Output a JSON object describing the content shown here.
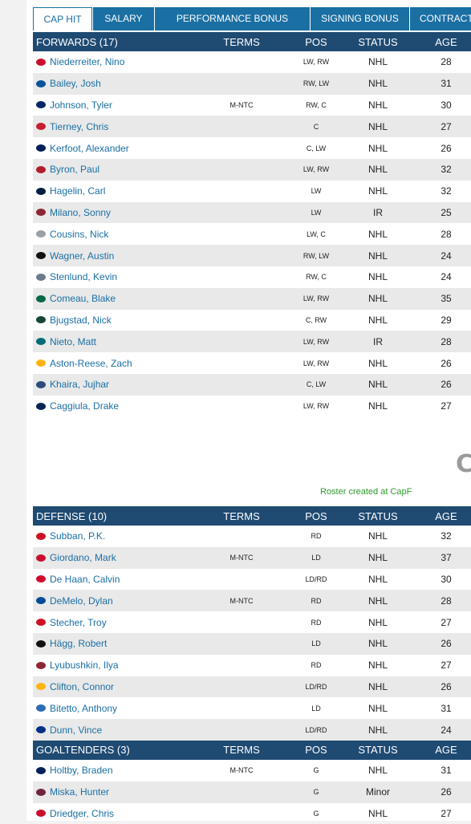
{
  "tabs": [
    {
      "label": "CAP HIT",
      "active": true
    },
    {
      "label": "SALARY",
      "active": false
    },
    {
      "label": "PERFORMANCE BONUS",
      "active": false
    },
    {
      "label": "SIGNING BONUS",
      "active": false
    },
    {
      "label": "CONTRACT CLA",
      "active": false
    }
  ],
  "columns": {
    "terms": "TERMS",
    "pos": "POS",
    "status": "STATUS",
    "age": "AGE"
  },
  "forwards": {
    "title": "FORWARDS (17)",
    "rows": [
      {
        "name": "Niederreiter, Nino",
        "terms": "",
        "pos": "LW, RW",
        "status": "NHL",
        "age": "28",
        "logo_color": "#c8102e"
      },
      {
        "name": "Bailey, Josh",
        "terms": "",
        "pos": "RW, LW",
        "status": "NHL",
        "age": "31",
        "logo_color": "#00539b"
      },
      {
        "name": "Johnson, Tyler",
        "terms": "M-NTC",
        "pos": "RW, C",
        "status": "NHL",
        "age": "30",
        "logo_color": "#002868"
      },
      {
        "name": "Tierney, Chris",
        "terms": "",
        "pos": "C",
        "status": "NHL",
        "age": "27",
        "logo_color": "#c52032"
      },
      {
        "name": "Kerfoot, Alexander",
        "terms": "",
        "pos": "C, LW",
        "status": "NHL",
        "age": "26",
        "logo_color": "#00205b"
      },
      {
        "name": "Byron, Paul",
        "terms": "",
        "pos": "LW, RW",
        "status": "NHL",
        "age": "32",
        "logo_color": "#af1e2d"
      },
      {
        "name": "Hagelin, Carl",
        "terms": "",
        "pos": "LW",
        "status": "NHL",
        "age": "32",
        "logo_color": "#041e42"
      },
      {
        "name": "Milano, Sonny",
        "terms": "",
        "pos": "LW",
        "status": "IR",
        "age": "25",
        "logo_color": "#8c2633"
      },
      {
        "name": "Cousins, Nick",
        "terms": "",
        "pos": "LW, C",
        "status": "NHL",
        "age": "28",
        "logo_color": "#9aa0a6"
      },
      {
        "name": "Wagner, Austin",
        "terms": "",
        "pos": "RW, LW",
        "status": "NHL",
        "age": "24",
        "logo_color": "#111111"
      },
      {
        "name": "Stenlund, Kevin",
        "terms": "",
        "pos": "RW, C",
        "status": "NHL",
        "age": "24",
        "logo_color": "#6c7b8b"
      },
      {
        "name": "Comeau, Blake",
        "terms": "",
        "pos": "LW, RW",
        "status": "NHL",
        "age": "35",
        "logo_color": "#006847"
      },
      {
        "name": "Bjugstad, Nick",
        "terms": "",
        "pos": "C, RW",
        "status": "NHL",
        "age": "29",
        "logo_color": "#154734"
      },
      {
        "name": "Nieto, Matt",
        "terms": "",
        "pos": "LW, RW",
        "status": "IR",
        "age": "28",
        "logo_color": "#006d75"
      },
      {
        "name": "Aston-Reese, Zach",
        "terms": "",
        "pos": "LW, RW",
        "status": "NHL",
        "age": "26",
        "logo_color": "#fcb514"
      },
      {
        "name": "Khaira, Jujhar",
        "terms": "",
        "pos": "C, LW",
        "status": "NHL",
        "age": "26",
        "logo_color": "#2e4d7a"
      },
      {
        "name": "Caggiula, Drake",
        "terms": "",
        "pos": "LW, RW",
        "status": "NHL",
        "age": "27",
        "logo_color": "#002654"
      }
    ]
  },
  "separator_logo": "C",
  "roster_note": "Roster created at CapF",
  "defense": {
    "title": "DEFENSE (10)",
    "rows": [
      {
        "name": "Subban, P.K.",
        "terms": "",
        "pos": "RD",
        "status": "NHL",
        "age": "32",
        "logo_color": "#ce1126"
      },
      {
        "name": "Giordano, Mark",
        "terms": "M-NTC",
        "pos": "LD",
        "status": "NHL",
        "age": "37",
        "logo_color": "#c8102e"
      },
      {
        "name": "De Haan, Calvin",
        "terms": "",
        "pos": "LD/RD",
        "status": "NHL",
        "age": "30",
        "logo_color": "#cf0a2c"
      },
      {
        "name": "DeMelo, Dylan",
        "terms": "M-NTC",
        "pos": "RD",
        "status": "NHL",
        "age": "28",
        "logo_color": "#004c97"
      },
      {
        "name": "Stecher, Troy",
        "terms": "",
        "pos": "RD",
        "status": "NHL",
        "age": "27",
        "logo_color": "#ce1126"
      },
      {
        "name": "Hägg, Robert",
        "terms": "",
        "pos": "LD",
        "status": "NHL",
        "age": "26",
        "logo_color": "#111111"
      },
      {
        "name": "Lyubushkin, Ilya",
        "terms": "",
        "pos": "RD",
        "status": "NHL",
        "age": "27",
        "logo_color": "#8c2633"
      },
      {
        "name": "Clifton, Connor",
        "terms": "",
        "pos": "LD/RD",
        "status": "NHL",
        "age": "26",
        "logo_color": "#fcb514"
      },
      {
        "name": "Bitetto, Anthony",
        "terms": "",
        "pos": "LD",
        "status": "NHL",
        "age": "31",
        "logo_color": "#2e6db4"
      },
      {
        "name": "Dunn, Vince",
        "terms": "",
        "pos": "LD/RD",
        "status": "NHL",
        "age": "24",
        "logo_color": "#002f87"
      }
    ]
  },
  "goaltenders": {
    "title": "GOALTENDERS (3)",
    "rows": [
      {
        "name": "Holtby, Braden",
        "terms": "M-NTC",
        "pos": "G",
        "status": "NHL",
        "age": "31",
        "logo_color": "#00205b"
      },
      {
        "name": "Miska, Hunter",
        "terms": "",
        "pos": "G",
        "status": "Minor",
        "age": "26",
        "logo_color": "#6f263d"
      },
      {
        "name": "Driedger, Chris",
        "terms": "",
        "pos": "G",
        "status": "NHL",
        "age": "27",
        "logo_color": "#c8102e"
      }
    ]
  }
}
